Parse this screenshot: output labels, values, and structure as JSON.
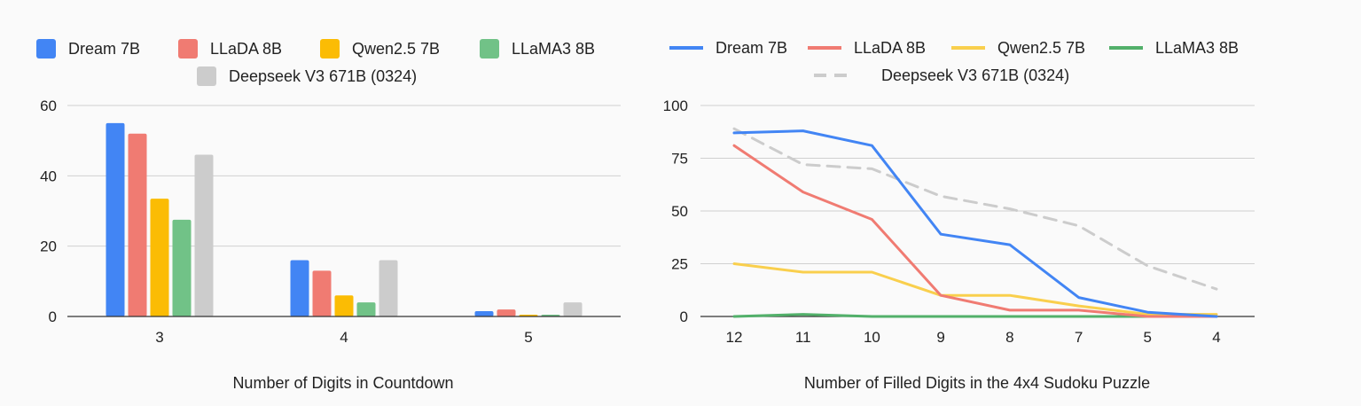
{
  "colors": {
    "dream": "#4285f4",
    "llada": "#f07b72",
    "qwen": "#fbbc04",
    "qwen_line": "#f9cf4d",
    "llama": "#71c287",
    "llama_line": "#52b06a",
    "deepseek": "#cccccc",
    "grid": "#d0d0d0",
    "baseline": "#333333"
  },
  "chart_data": [
    {
      "type": "bar",
      "title": "",
      "xlabel": "Number of Digits in Countdown",
      "ylabel": "",
      "categories": [
        "3",
        "4",
        "5"
      ],
      "ylim": [
        0,
        60
      ],
      "yticks": [
        "0",
        "20",
        "40",
        "60"
      ],
      "grid": true,
      "legend_position": "top",
      "series": [
        {
          "name": "Dream 7B",
          "color_key": "dream",
          "values": [
            55,
            16,
            1.5
          ]
        },
        {
          "name": "LLaDA 8B",
          "color_key": "llada",
          "values": [
            52,
            13,
            2
          ]
        },
        {
          "name": "Qwen2.5 7B",
          "color_key": "qwen",
          "values": [
            33.5,
            6,
            0.5
          ]
        },
        {
          "name": "LLaMA3 8B",
          "color_key": "llama",
          "values": [
            27.5,
            4,
            0.5
          ]
        },
        {
          "name": "Deepseek V3 671B (0324)",
          "color_key": "deepseek",
          "values": [
            46,
            16,
            4
          ]
        }
      ]
    },
    {
      "type": "line",
      "title": "",
      "xlabel": "Number of Filled Digits in the 4x4 Sudoku Puzzle",
      "ylabel": "",
      "categories": [
        "12",
        "11",
        "10",
        "9",
        "8",
        "7",
        "5",
        "4"
      ],
      "ylim": [
        0,
        100
      ],
      "yticks": [
        "0",
        "25",
        "50",
        "75",
        "100"
      ],
      "grid": true,
      "legend_position": "top",
      "series": [
        {
          "name": "Dream 7B",
          "color_key": "dream",
          "dashed": false,
          "values": [
            87,
            88,
            81,
            39,
            34,
            9,
            2,
            0
          ]
        },
        {
          "name": "LLaDA 8B",
          "color_key": "llada",
          "dashed": false,
          "values": [
            81,
            59,
            46,
            10,
            3,
            3,
            0,
            0
          ]
        },
        {
          "name": "Qwen2.5 7B",
          "color_key": "qwen_line",
          "dashed": false,
          "values": [
            25,
            21,
            21,
            10,
            10,
            5,
            1,
            1
          ]
        },
        {
          "name": "LLaMA3 8B",
          "color_key": "llama_line",
          "dashed": false,
          "values": [
            0,
            1,
            0,
            0,
            0,
            0,
            0,
            0
          ]
        },
        {
          "name": "Deepseek V3 671B (0324)",
          "color_key": "deepseek",
          "dashed": true,
          "values": [
            89,
            72,
            70,
            57,
            51,
            43,
            24,
            13
          ]
        }
      ]
    }
  ]
}
